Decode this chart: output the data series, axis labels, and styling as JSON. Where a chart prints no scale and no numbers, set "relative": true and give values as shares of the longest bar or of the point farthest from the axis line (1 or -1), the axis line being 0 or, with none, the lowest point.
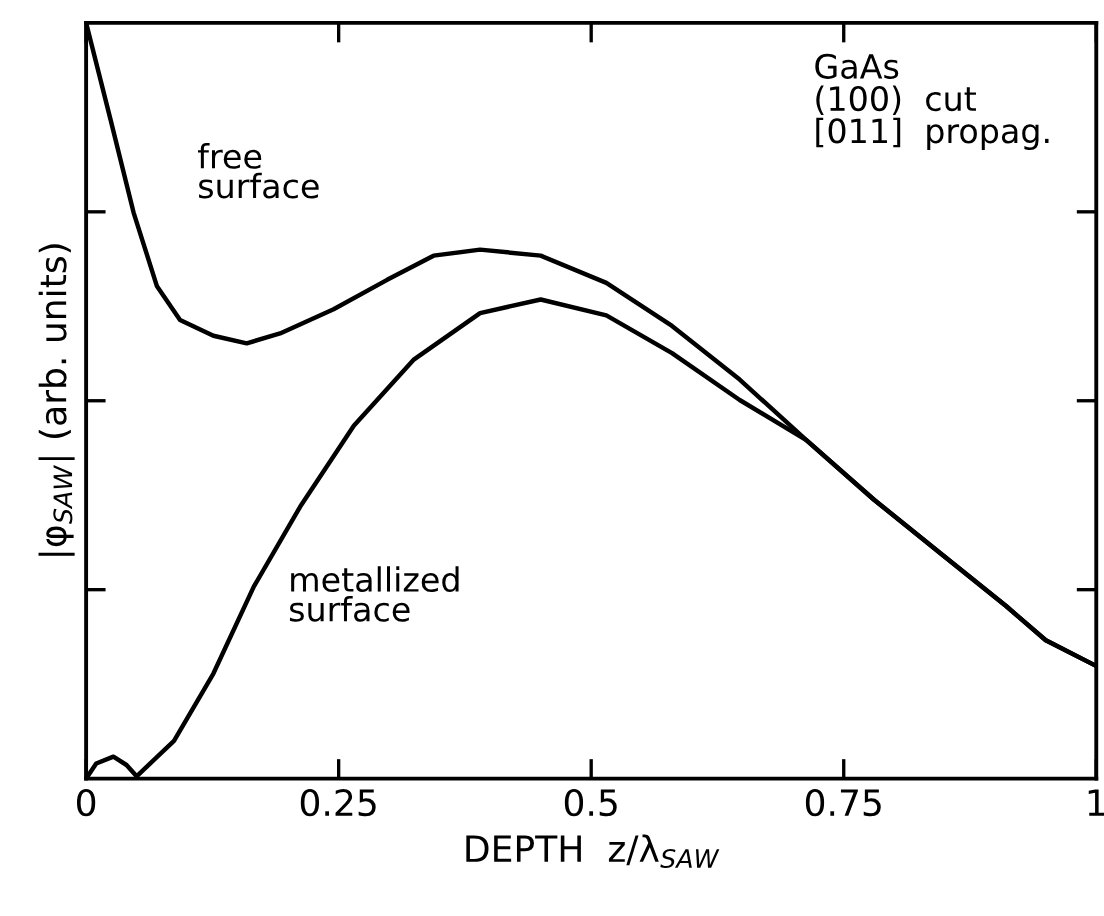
{
  "chart_data": {
    "type": "line",
    "relative": true,
    "tick_labels": "x",
    "xlabel": "DEPTH  z/λ$_{SAW}$",
    "ylabel": "|φ$_{SAW}$| (arb. units)",
    "xlim": [
      0,
      1
    ],
    "xticks": [
      0,
      0.25,
      0.5,
      0.75,
      1
    ],
    "grid": false,
    "legend": false,
    "marker": "none",
    "line_style": "solid",
    "annotations": [
      "GaAs\n(100)  cut\n[011]  propag."
    ],
    "series": [
      {
        "name": "free\nsurface",
        "color": "#000000",
        "x": [
          0,
          0.024,
          0.047,
          0.07,
          0.093,
          0.126,
          0.159,
          0.192,
          0.245,
          0.298,
          0.344,
          0.39,
          0.45,
          0.515,
          0.58,
          0.647,
          0.713,
          0.78,
          0.846,
          0.911,
          0.95,
          1.0
        ],
        "values": [
          1.0,
          0.873,
          0.749,
          0.652,
          0.607,
          0.586,
          0.576,
          0.589,
          0.621,
          0.66,
          0.692,
          0.7,
          0.692,
          0.656,
          0.599,
          0.528,
          0.448,
          0.369,
          0.298,
          0.228,
          0.183,
          0.149
        ]
      },
      {
        "name": "metallized\nsurface",
        "color": "#000000",
        "x": [
          0,
          0.01,
          0.027,
          0.04,
          0.05,
          0.087,
          0.126,
          0.166,
          0.212,
          0.265,
          0.324,
          0.39,
          0.45,
          0.515,
          0.58,
          0.647,
          0.713,
          0.78,
          0.846,
          0.911,
          0.95,
          1.0
        ],
        "values": [
          0,
          0.02,
          0.029,
          0.018,
          0.003,
          0.05,
          0.139,
          0.254,
          0.36,
          0.467,
          0.554,
          0.616,
          0.634,
          0.613,
          0.563,
          0.501,
          0.448,
          0.369,
          0.298,
          0.228,
          0.183,
          0.149
        ]
      }
    ]
  }
}
